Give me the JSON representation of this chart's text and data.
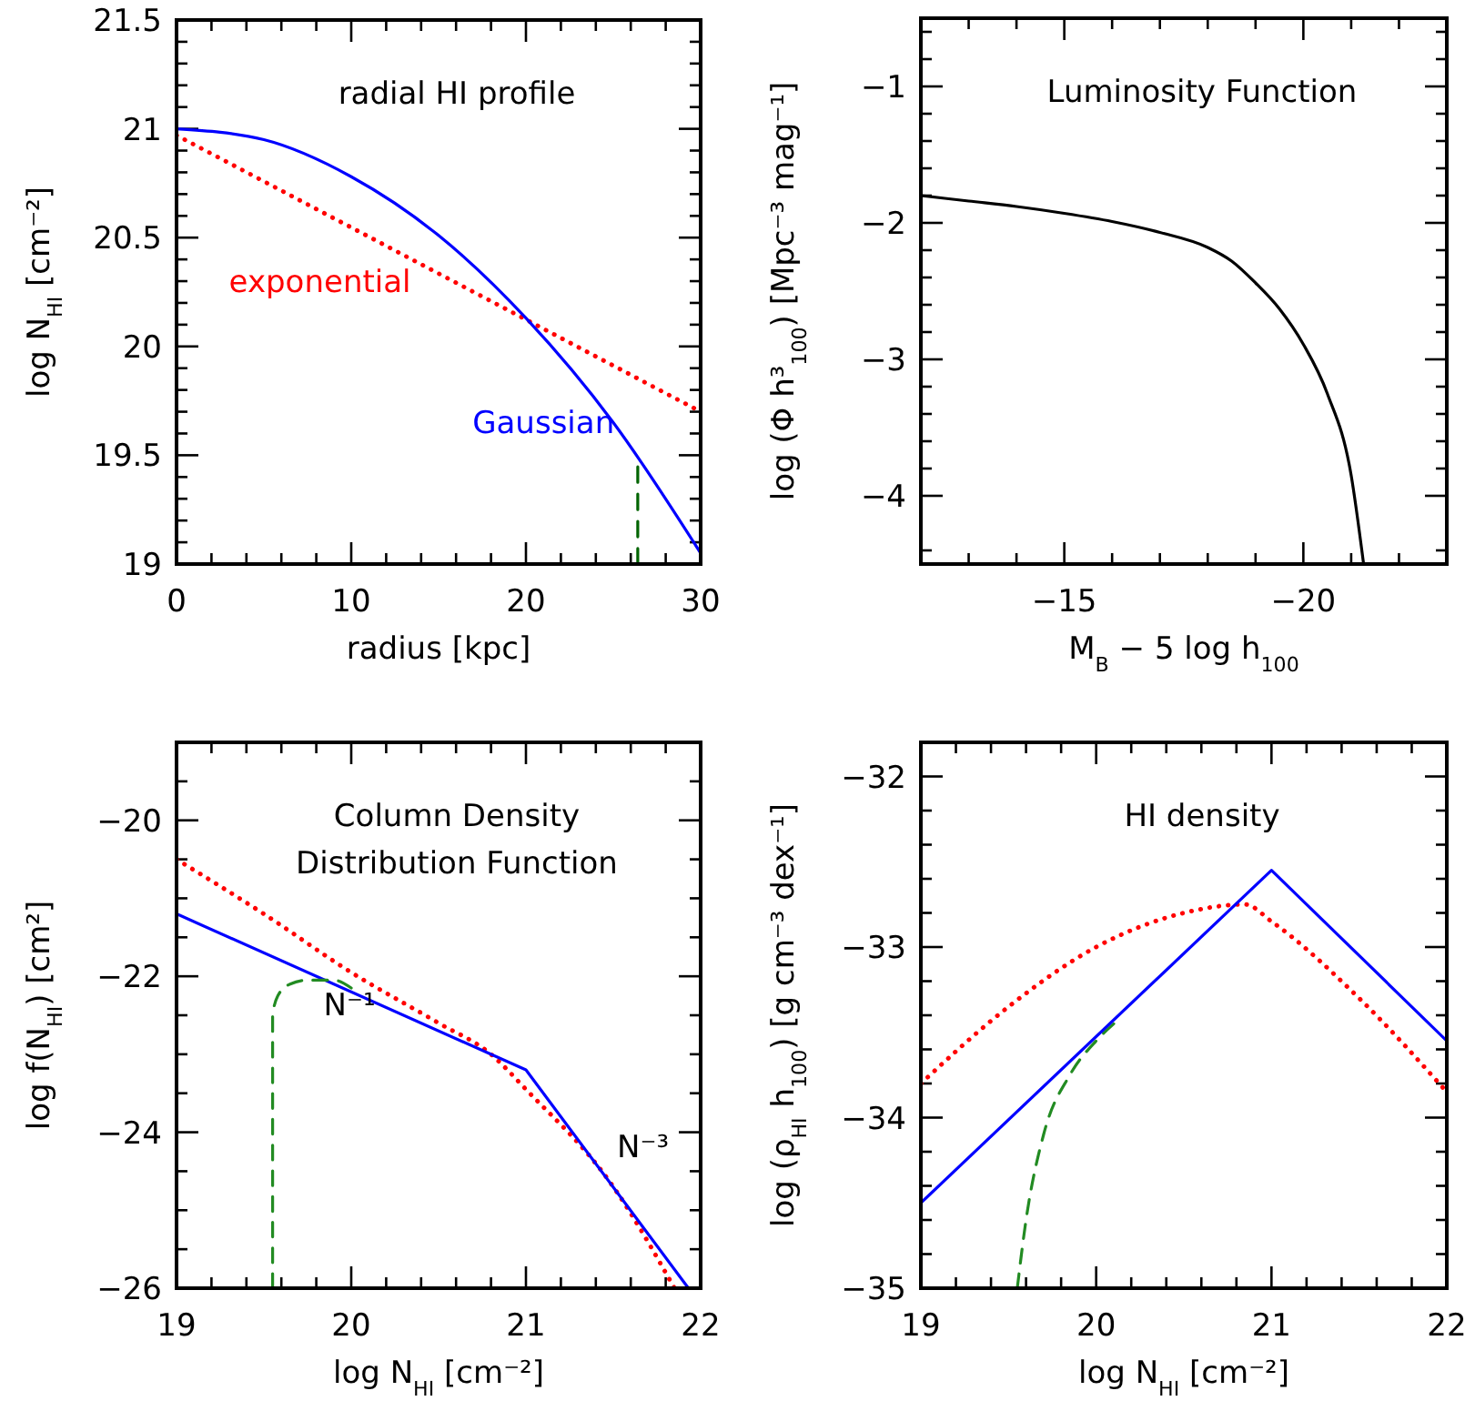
{
  "chart_data": [
    {
      "type": "line",
      "title": "radial HI profile",
      "xlabel": "radius [kpc]",
      "ylabel": "log N$_{HI}$ [cm⁻²]",
      "xlim": [
        0,
        30
      ],
      "ylim": [
        19,
        21.5
      ],
      "xticks": [
        0,
        {
          "value": 2,
          "label": null
        },
        {
          "value": 4,
          "label": null
        },
        {
          "value": 6,
          "label": null
        },
        {
          "value": 8,
          "label": null
        },
        10,
        {
          "value": 12,
          "label": null
        },
        {
          "value": 14,
          "label": null
        },
        {
          "value": 16,
          "label": null
        },
        {
          "value": 18,
          "label": null
        },
        20,
        {
          "value": 22,
          "label": null
        },
        {
          "value": 24,
          "label": null
        },
        {
          "value": 26,
          "label": null
        },
        {
          "value": 28,
          "label": null
        },
        30
      ],
      "yticks": [
        19,
        {
          "value": 19.1,
          "label": null
        },
        {
          "value": 19.2,
          "label": null
        },
        {
          "value": 19.3,
          "label": null
        },
        {
          "value": 19.4,
          "label": null
        },
        19.5,
        {
          "value": 19.6,
          "label": null
        },
        {
          "value": 19.7,
          "label": null
        },
        {
          "value": 19.8,
          "label": null
        },
        {
          "value": 19.9,
          "label": null
        },
        20,
        {
          "value": 20.1,
          "label": null
        },
        {
          "value": 20.2,
          "label": null
        },
        {
          "value": 20.3,
          "label": null
        },
        {
          "value": 20.4,
          "label": null
        },
        20.5,
        {
          "value": 20.6,
          "label": null
        },
        {
          "value": 20.7,
          "label": null
        },
        {
          "value": 20.8,
          "label": null
        },
        {
          "value": 20.9,
          "label": null
        },
        21,
        {
          "value": 21.1,
          "label": null
        },
        {
          "value": 21.2,
          "label": null
        },
        {
          "value": 21.3,
          "label": null
        },
        {
          "value": 21.4,
          "label": null
        },
        21.5
      ],
      "series": [
        {
          "name": "exponential",
          "color": "#ff0000",
          "line_style": "dotted",
          "x": [
            0,
            30
          ],
          "values": [
            20.97,
            19.7
          ]
        },
        {
          "name": "Gaussian",
          "color": "#0000ff",
          "line_style": "solid",
          "x": [
            0,
            5,
            10,
            15,
            20,
            25,
            30
          ],
          "values": [
            21,
            20.95,
            20.78,
            20.51,
            20.13,
            19.65,
            19.05
          ]
        },
        {
          "color": "#006400",
          "line_style": "dashed",
          "x": [
            26.4,
            26.4
          ],
          "values": [
            19,
            19.45
          ]
        }
      ]
    },
    {
      "type": "line",
      "title": "Luminosity Function",
      "xlabel": "M$_{B}$ − 5 log h$_{100}$",
      "ylabel": "log (Φ h³$_{100}$) [Mpc⁻³ mag⁻¹]",
      "xlim": [
        -12,
        -23
      ],
      "ylim": [
        -4.5,
        -0.5
      ],
      "xticks": [
        {
          "value": -12,
          "label": null
        },
        {
          "value": -13,
          "label": null
        },
        {
          "value": -14,
          "label": null
        },
        -15,
        {
          "value": -16,
          "label": null
        },
        {
          "value": -17,
          "label": null
        },
        {
          "value": -18,
          "label": null
        },
        {
          "value": -19,
          "label": null
        },
        -20,
        {
          "value": -21,
          "label": null
        },
        {
          "value": -22,
          "label": null
        },
        {
          "value": -23,
          "label": null
        }
      ],
      "yticks": [
        {
          "value": -4.4,
          "label": null
        },
        -4,
        {
          "value": -3.8,
          "label": null
        },
        {
          "value": -3.6,
          "label": null
        },
        {
          "value": -3.4,
          "label": null
        },
        {
          "value": -3.2,
          "label": null
        },
        -3,
        {
          "value": -2.8,
          "label": null
        },
        {
          "value": -2.6,
          "label": null
        },
        {
          "value": -2.4,
          "label": null
        },
        {
          "value": -2.2,
          "label": null
        },
        -2,
        {
          "value": -1.8,
          "label": null
        },
        {
          "value": -1.6,
          "label": null
        },
        {
          "value": -1.4,
          "label": null
        },
        {
          "value": -1.2,
          "label": null
        },
        -1,
        {
          "value": -0.8,
          "label": null
        },
        {
          "value": -0.6,
          "label": null
        }
      ],
      "series": [
        {
          "color": "#000000",
          "line_style": "solid",
          "x": [
            -12,
            -13,
            -14,
            -15,
            -16,
            -17,
            -18,
            -18.5,
            -19,
            -19.5,
            -20,
            -20.5,
            -21,
            -21.26
          ],
          "values": [
            -1.8,
            -1.84,
            -1.88,
            -1.93,
            -1.99,
            -2.07,
            -2.18,
            -2.28,
            -2.44,
            -2.63,
            -2.89,
            -3.25,
            -3.85,
            -4.5
          ]
        }
      ]
    },
    {
      "type": "line",
      "title": "Column Density\nDistribution Function",
      "xlabel": "log N$_{HI}$ [cm⁻²]",
      "ylabel": "log f(N$_{HI}$) [cm²]",
      "xlim": [
        19,
        22
      ],
      "ylim": [
        -26,
        -19
      ],
      "xticks": [
        19,
        {
          "value": 19.2,
          "label": null
        },
        {
          "value": 19.4,
          "label": null
        },
        {
          "value": 19.6,
          "label": null
        },
        {
          "value": 19.8,
          "label": null
        },
        20,
        {
          "value": 20.2,
          "label": null
        },
        {
          "value": 20.4,
          "label": null
        },
        {
          "value": 20.6,
          "label": null
        },
        {
          "value": 20.8,
          "label": null
        },
        21,
        {
          "value": 21.2,
          "label": null
        },
        {
          "value": 21.4,
          "label": null
        },
        {
          "value": 21.6,
          "label": null
        },
        {
          "value": 21.8,
          "label": null
        },
        22
      ],
      "yticks": [
        -26,
        {
          "value": -25.5,
          "label": null
        },
        {
          "value": -25,
          "label": null
        },
        {
          "value": -24.5,
          "label": null
        },
        -24,
        {
          "value": -23.5,
          "label": null
        },
        {
          "value": -23,
          "label": null
        },
        {
          "value": -22.5,
          "label": null
        },
        -22,
        {
          "value": -21.5,
          "label": null
        },
        {
          "value": -21,
          "label": null
        },
        {
          "value": -20.5,
          "label": null
        },
        -20,
        {
          "value": -19.5,
          "label": null
        }
      ],
      "annotations": [
        "N⁻¹",
        "N⁻³"
      ],
      "series": [
        {
          "color": "#ff0000",
          "line_style": "dotted",
          "x": [
            19,
            19.5,
            20,
            20.5,
            20.8,
            21,
            21.5,
            21.85
          ],
          "values": [
            -20.5,
            -21.2,
            -21.95,
            -22.6,
            -23.0,
            -23.45,
            -24.7,
            -26
          ]
        },
        {
          "color": "#0000ff",
          "line_style": "solid",
          "x": [
            19,
            21,
            21.93
          ],
          "values": [
            -21.2,
            -23.2,
            -26
          ]
        },
        {
          "color": "#228b22",
          "line_style": "dashed",
          "x": [
            19.55,
            19.55,
            19.58,
            19.65,
            19.75,
            19.9,
            20
          ],
          "values": [
            -26,
            -22.5,
            -22.25,
            -22.1,
            -22.05,
            -22.05,
            -22.15
          ]
        }
      ]
    },
    {
      "type": "line",
      "title": "HI density",
      "xlabel": "log N$_{HI}$ [cm⁻²]",
      "ylabel": "log (ρ$_{HI}$ h$_{100}$) [g cm⁻³ dex⁻¹]",
      "xlim": [
        19,
        22
      ],
      "ylim": [
        -35,
        -31.8
      ],
      "xticks": [
        19,
        {
          "value": 19.2,
          "label": null
        },
        {
          "value": 19.4,
          "label": null
        },
        {
          "value": 19.6,
          "label": null
        },
        {
          "value": 19.8,
          "label": null
        },
        20,
        {
          "value": 20.2,
          "label": null
        },
        {
          "value": 20.4,
          "label": null
        },
        {
          "value": 20.6,
          "label": null
        },
        {
          "value": 20.8,
          "label": null
        },
        21,
        {
          "value": 21.2,
          "label": null
        },
        {
          "value": 21.4,
          "label": null
        },
        {
          "value": 21.6,
          "label": null
        },
        {
          "value": 21.8,
          "label": null
        },
        22
      ],
      "yticks": [
        -35,
        {
          "value": -34.8,
          "label": null
        },
        {
          "value": -34.6,
          "label": null
        },
        {
          "value": -34.4,
          "label": null
        },
        {
          "value": -34.2,
          "label": null
        },
        -34,
        {
          "value": -33.8,
          "label": null
        },
        {
          "value": -33.6,
          "label": null
        },
        {
          "value": -33.4,
          "label": null
        },
        {
          "value": -33.2,
          "label": null
        },
        -33,
        {
          "value": -32.8,
          "label": null
        },
        {
          "value": -32.6,
          "label": null
        },
        {
          "value": -32.4,
          "label": null
        },
        {
          "value": -32.2,
          "label": null
        },
        -32
      ],
      "series": [
        {
          "color": "#ff0000",
          "line_style": "dotted",
          "x": [
            19,
            19.5,
            20,
            20.5,
            20.85,
            21,
            21.5,
            22
          ],
          "values": [
            -33.8,
            -33.35,
            -33.0,
            -32.8,
            -32.75,
            -32.85,
            -33.3,
            -33.85
          ]
        },
        {
          "color": "#228b22",
          "line_style": "dashed",
          "x": [
            19.55,
            19.6,
            19.7,
            19.85,
            20,
            20.1
          ],
          "values": [
            -35,
            -34.6,
            -34.1,
            -33.75,
            -33.55,
            -33.45
          ]
        },
        {
          "color": "#0000ff",
          "line_style": "solid",
          "x": [
            19,
            21,
            22
          ],
          "values": [
            -34.5,
            -32.55,
            -33.55
          ]
        }
      ]
    }
  ]
}
